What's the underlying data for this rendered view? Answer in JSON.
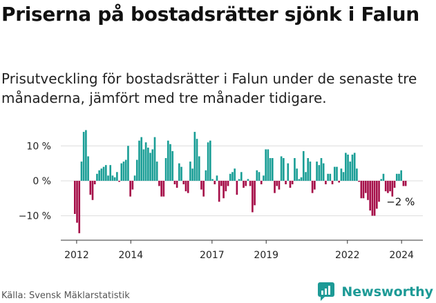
{
  "title": "Priserna på bostadsrätter sjönk i Falun",
  "subtitle": "Prisutveckling för bostadsrätter i Falun under de senaste tre månaderna, jämfört med tre månader tidigare.",
  "source": "Källa: Svensk Mäklarstatistik",
  "brand": {
    "name": "Newsworthy",
    "icon": "newsworthy-logo-icon",
    "color": "#1d9a96"
  },
  "colors": {
    "positive": "#1a9e96",
    "negative": "#a50e48",
    "grid": "#dddddd",
    "axis": "#333333"
  },
  "chart_data": {
    "type": "bar",
    "title": "Priserna på bostadsrätter sjönk i Falun",
    "xlabel": "",
    "ylabel": "",
    "ylim": [
      -17,
      15
    ],
    "yticks": [
      10,
      0,
      -10
    ],
    "ytick_labels": [
      "10 %",
      "0 %",
      "−10 %"
    ],
    "grid": true,
    "x_start": 2011.9,
    "x_end": 2024.2,
    "xticks": [
      2012,
      2014,
      2017,
      2019,
      2022,
      2024
    ],
    "xtick_labels": [
      "2012",
      "2014",
      "2017",
      "2019",
      "2022",
      "2024"
    ],
    "values": [
      -9.5,
      -12,
      -15,
      5.5,
      14,
      14.5,
      7,
      -4,
      -5.5,
      -1,
      2,
      3,
      3.5,
      4,
      4.5,
      1.5,
      4.5,
      1.5,
      1,
      2.5,
      -0.3,
      5,
      5.5,
      6,
      10,
      -4.5,
      -2.5,
      1.5,
      6,
      11.5,
      12.5,
      9,
      11,
      9.5,
      8,
      9,
      12.5,
      5.5,
      -1.5,
      -4.5,
      -4.5,
      6.5,
      11.5,
      10.5,
      8.5,
      -1,
      -2,
      5,
      4,
      -1,
      -3,
      -3.5,
      5.5,
      3.5,
      14,
      12,
      7,
      -2.5,
      -4.5,
      3,
      11,
      11.5,
      0.5,
      -1,
      1.5,
      -6,
      -1.5,
      -5,
      -3,
      -1.5,
      2,
      2.5,
      3.5,
      -4,
      0.5,
      2.5,
      -2,
      -1.5,
      0.5,
      -1.5,
      -9,
      -7,
      3,
      2.5,
      -1,
      1.5,
      9,
      9,
      6.5,
      6.5,
      -3.5,
      -1.5,
      -2.5,
      7,
      6.5,
      -1,
      5,
      -2,
      -1,
      6.5,
      3.5,
      0.5,
      1,
      8.5,
      2.5,
      6.5,
      5.5,
      -3.5,
      -2.5,
      5.5,
      4.5,
      6.5,
      5,
      -1,
      2,
      2,
      -1,
      4,
      4,
      -0.5,
      3.5,
      2.5,
      8,
      7.5,
      5.5,
      7.5,
      8,
      3.5,
      -0.3,
      -5,
      -5,
      -3.5,
      -5.5,
      -8.5,
      -10,
      -10,
      -8,
      -6,
      0.5,
      2,
      -3,
      -3.5,
      -3,
      -4.5,
      -2,
      2,
      2,
      3,
      -1.5,
      -1.5
    ],
    "annotations": [
      {
        "text": "−2 %",
        "index": 148,
        "value": -1.5
      }
    ]
  }
}
